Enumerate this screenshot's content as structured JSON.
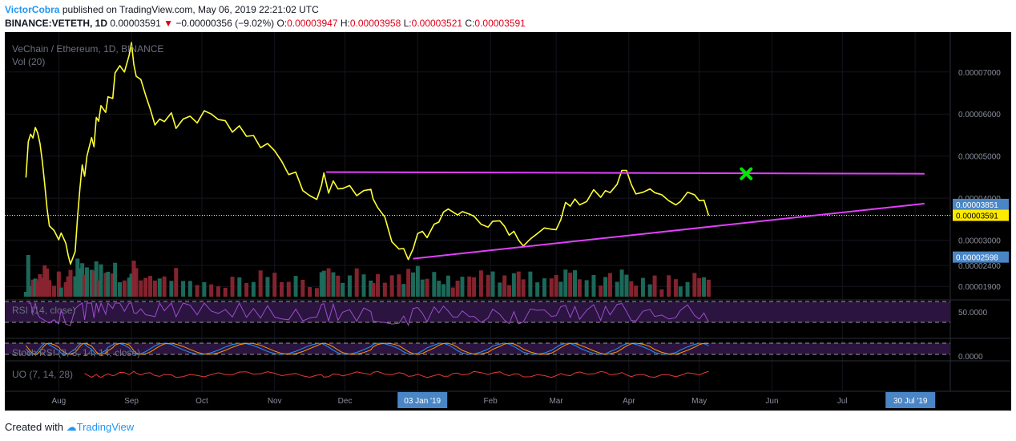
{
  "header": {
    "author": "VictorCobra",
    "published_text": "published on TradingView.com, May 06, 2019 22:21:02 UTC"
  },
  "symbol_line": {
    "symbol": "BINANCE:VETETH, 1D",
    "price": "0.00003591",
    "change": "−0.00000356 (−9.02%)",
    "open_label": "O:",
    "open": "0.00003947",
    "high_label": "H:",
    "high": "0.00003958",
    "low_label": "L:",
    "low": "0.00003521",
    "close_label": "C:",
    "close": "0.00003591"
  },
  "chart_data": {
    "type": "line",
    "title": "VeChain / Ethereum, 1D, BINANCE",
    "volume_label": "Vol (20)",
    "x_tick_labels": [
      "Aug",
      "Sep",
      "Oct",
      "Nov",
      "Dec",
      "03 Jan '19",
      "Feb",
      "Mar",
      "Apr",
      "May",
      "Jun",
      "Jul",
      "30 Jul '19"
    ],
    "y_tick_labels": [
      "0.00007000",
      "0.00006000",
      "0.00005000",
      "0.00004000",
      "0.00003000",
      "0.00002400",
      "0.00001900"
    ],
    "price_tags": [
      {
        "value": "0.00003851",
        "color": "#4a86c5"
      },
      {
        "value": "0.00003591",
        "color": "#ffeb00"
      },
      {
        "value": "0.00002598",
        "color": "#4a86c5"
      }
    ],
    "series": [
      {
        "values": [
          [
            "2018-07-18",
            4.49e-05
          ],
          [
            "2018-07-19",
            5.34e-05
          ],
          [
            "2018-07-20",
            5.52e-05
          ],
          [
            "2018-07-21",
            5.43e-05
          ],
          [
            "2018-07-22",
            5.68e-05
          ],
          [
            "2018-07-23",
            5.55e-05
          ],
          [
            "2018-07-24",
            5.3e-05
          ],
          [
            "2018-07-25",
            4.88e-05
          ],
          [
            "2018-07-26",
            4.33e-05
          ],
          [
            "2018-07-27",
            3.76e-05
          ],
          [
            "2018-07-28",
            3.34e-05
          ],
          [
            "2018-07-30",
            3.23e-05
          ],
          [
            "2018-08-01",
            3.01e-05
          ],
          [
            "2018-08-02",
            3.17e-05
          ],
          [
            "2018-08-04",
            2.93e-05
          ],
          [
            "2018-08-05",
            2.64e-05
          ],
          [
            "2018-08-06",
            2.43e-05
          ],
          [
            "2018-08-08",
            2.73e-05
          ],
          [
            "2018-08-09",
            3.55e-05
          ],
          [
            "2018-08-10",
            4.22e-05
          ],
          [
            "2018-08-11",
            4.79e-05
          ],
          [
            "2018-08-12",
            4.52e-05
          ],
          [
            "2018-08-13",
            5e-05
          ],
          [
            "2018-08-15",
            5.44e-05
          ],
          [
            "2018-08-16",
            5.22e-05
          ],
          [
            "2018-08-17",
            5.92e-05
          ],
          [
            "2018-08-18",
            5.83e-05
          ],
          [
            "2018-08-19",
            6.2e-05
          ],
          [
            "2018-08-21",
            6.04e-05
          ],
          [
            "2018-08-22",
            6.41e-05
          ],
          [
            "2018-08-24",
            6.37e-05
          ],
          [
            "2018-08-25",
            6.98e-05
          ],
          [
            "2018-08-27",
            7.15e-05
          ],
          [
            "2018-08-29",
            7e-05
          ],
          [
            "2018-08-31",
            7.4e-05
          ],
          [
            "2018-09-01",
            7.7e-05
          ],
          [
            "2018-09-02",
            7.18e-05
          ],
          [
            "2018-09-03",
            6.9e-05
          ],
          [
            "2018-09-05",
            6.82e-05
          ],
          [
            "2018-09-07",
            6.45e-05
          ],
          [
            "2018-09-09",
            6.12e-05
          ],
          [
            "2018-09-11",
            5.74e-05
          ],
          [
            "2018-09-13",
            5.88e-05
          ],
          [
            "2018-09-15",
            5.82e-05
          ],
          [
            "2018-09-18",
            6.03e-05
          ],
          [
            "2018-09-20",
            5.66e-05
          ],
          [
            "2018-09-23",
            5.88e-05
          ],
          [
            "2018-09-26",
            5.95e-05
          ],
          [
            "2018-09-29",
            5.79e-05
          ],
          [
            "2018-10-02",
            6.08e-05
          ],
          [
            "2018-10-05",
            6e-05
          ],
          [
            "2018-10-08",
            5.87e-05
          ],
          [
            "2018-10-11",
            5.84e-05
          ],
          [
            "2018-10-14",
            5.57e-05
          ],
          [
            "2018-10-17",
            5.72e-05
          ],
          [
            "2018-10-20",
            5.47e-05
          ],
          [
            "2018-10-23",
            5.49e-05
          ],
          [
            "2018-10-26",
            5.2e-05
          ],
          [
            "2018-10-29",
            5.3e-05
          ],
          [
            "2018-11-01",
            5.13e-05
          ],
          [
            "2018-11-04",
            4.88e-05
          ],
          [
            "2018-11-07",
            4.56e-05
          ],
          [
            "2018-11-10",
            4.62e-05
          ],
          [
            "2018-11-13",
            4.18e-05
          ],
          [
            "2018-11-16",
            4.06e-05
          ],
          [
            "2018-11-19",
            3.97e-05
          ],
          [
            "2018-11-21",
            4.31e-05
          ],
          [
            "2018-11-22",
            4.6e-05
          ],
          [
            "2018-11-24",
            4.12e-05
          ],
          [
            "2018-11-26",
            4.41e-05
          ],
          [
            "2018-11-28",
            4.22e-05
          ],
          [
            "2018-11-30",
            4.23e-05
          ],
          [
            "2018-12-03",
            4.3e-05
          ],
          [
            "2018-12-06",
            4.06e-05
          ],
          [
            "2018-12-09",
            4.18e-05
          ],
          [
            "2018-12-12",
            4.21e-05
          ],
          [
            "2018-12-13",
            3.98e-05
          ],
          [
            "2018-12-15",
            3.77e-05
          ],
          [
            "2018-12-18",
            3.55e-05
          ],
          [
            "2018-12-21",
            2.96e-05
          ],
          [
            "2018-12-24",
            2.79e-05
          ],
          [
            "2018-12-26",
            2.8e-05
          ],
          [
            "2018-12-28",
            2.54e-05
          ],
          [
            "2018-12-30",
            2.79e-05
          ],
          [
            "2019-01-01",
            3.16e-05
          ],
          [
            "2019-01-03",
            3.21e-05
          ],
          [
            "2019-01-05",
            3.06e-05
          ],
          [
            "2019-01-08",
            3.38e-05
          ],
          [
            "2019-01-10",
            3.43e-05
          ],
          [
            "2019-01-12",
            3.67e-05
          ],
          [
            "2019-01-14",
            3.74e-05
          ],
          [
            "2019-01-16",
            3.67e-05
          ],
          [
            "2019-01-18",
            3.6e-05
          ],
          [
            "2019-01-20",
            3.68e-05
          ],
          [
            "2019-01-23",
            3.62e-05
          ],
          [
            "2019-01-25",
            3.57e-05
          ],
          [
            "2019-01-28",
            3.38e-05
          ],
          [
            "2019-01-31",
            3.31e-05
          ],
          [
            "2019-02-02",
            3.45e-05
          ],
          [
            "2019-02-05",
            3.46e-05
          ],
          [
            "2019-02-07",
            3.33e-05
          ],
          [
            "2019-02-09",
            3.12e-05
          ],
          [
            "2019-02-11",
            3.21e-05
          ],
          [
            "2019-02-13",
            3e-05
          ],
          [
            "2019-02-15",
            2.86e-05
          ],
          [
            "2019-02-18",
            3.03e-05
          ],
          [
            "2019-02-21",
            3.16e-05
          ],
          [
            "2019-02-24",
            3.29e-05
          ],
          [
            "2019-02-27",
            3.26e-05
          ],
          [
            "2019-03-01",
            3.25e-05
          ],
          [
            "2019-03-03",
            3.49e-05
          ],
          [
            "2019-03-05",
            3.9e-05
          ],
          [
            "2019-03-07",
            3.81e-05
          ],
          [
            "2019-03-09",
            3.98e-05
          ],
          [
            "2019-03-11",
            3.84e-05
          ],
          [
            "2019-03-14",
            3.92e-05
          ],
          [
            "2019-03-17",
            4.2e-05
          ],
          [
            "2019-03-20",
            4.02e-05
          ],
          [
            "2019-03-22",
            4.18e-05
          ],
          [
            "2019-03-24",
            4.13e-05
          ],
          [
            "2019-03-27",
            4.33e-05
          ],
          [
            "2019-03-29",
            4.66e-05
          ],
          [
            "2019-03-31",
            4.66e-05
          ],
          [
            "2019-04-02",
            4.33e-05
          ],
          [
            "2019-04-04",
            4.1e-05
          ],
          [
            "2019-04-07",
            4.14e-05
          ],
          [
            "2019-04-10",
            4.22e-05
          ],
          [
            "2019-04-12",
            4.13e-05
          ],
          [
            "2019-04-15",
            4.08e-05
          ],
          [
            "2019-04-18",
            3.94e-05
          ],
          [
            "2019-04-21",
            3.84e-05
          ],
          [
            "2019-04-23",
            3.92e-05
          ],
          [
            "2019-04-26",
            4.14e-05
          ],
          [
            "2019-04-29",
            4.08e-05
          ],
          [
            "2019-05-01",
            3.94e-05
          ],
          [
            "2019-05-03",
            3.95e-05
          ],
          [
            "2019-05-05",
            3.59e-05
          ]
        ]
      }
    ],
    "last_price": 3.591e-05,
    "ylim": [
      1.58e-05,
      7.95e-05
    ],
    "xlim": [
      "2018-07-09",
      "2019-08-16"
    ],
    "resistance_line": {
      "from": [
        "2018-11-23",
        4.62e-05
      ],
      "to": [
        "2019-08-05",
        4.58e-05
      ]
    },
    "support_line": {
      "from": [
        "2018-12-30",
        2.56e-05
      ],
      "to": [
        "2019-08-05",
        3.87e-05
      ]
    },
    "target_marker": [
      "2019-05-21",
      4.58e-05
    ],
    "volume": {
      "peak_label_count": 0
    },
    "panes": [
      {
        "label": "RSI (14, close)",
        "tick_label": "50.0000"
      },
      {
        "label": "Stoch RSI (3, 3, 14, 14, close)",
        "tick_label": "0.0000"
      },
      {
        "label": "UO (7, 14, 28)"
      }
    ],
    "grid": true,
    "colors": {
      "price": "#ffff33",
      "trend": "#e040fb",
      "marker": "#00e600",
      "up": "#1e6e5e",
      "down": "#8b2530",
      "axis_tag": "#4a86c5"
    }
  },
  "footer": {
    "created_with": "Created with",
    "brand": "TradingView"
  }
}
